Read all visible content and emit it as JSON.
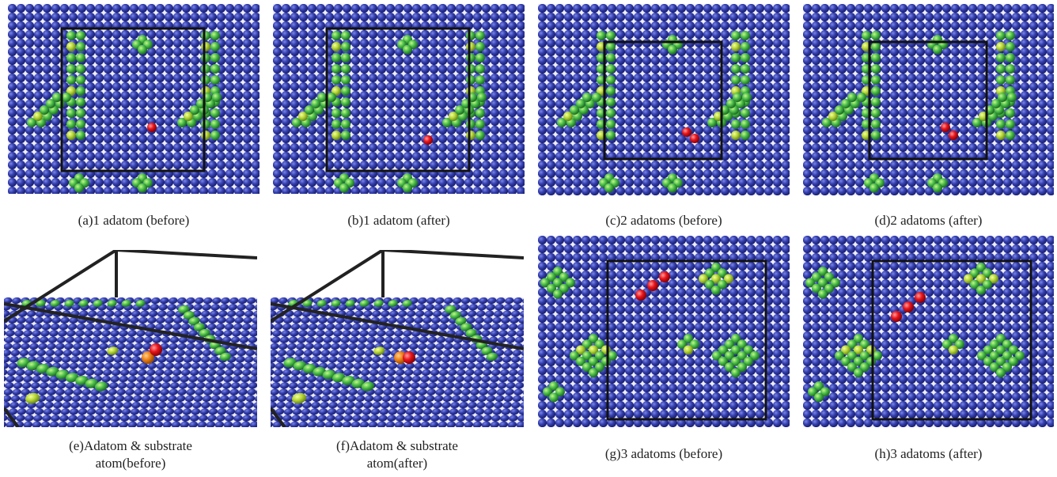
{
  "panels": [
    {
      "caption": [
        "(a)1 adatom (before)"
      ]
    },
    {
      "caption": [
        "(b)1 adatom (after)"
      ]
    },
    {
      "caption": [
        "(c)2 adatoms (before)"
      ]
    },
    {
      "caption": [
        "(d)2 adatoms (after)"
      ]
    },
    {
      "caption": [
        "(e)Adatom & substrate",
        "atom(before)"
      ]
    },
    {
      "caption": [
        "(f)Adatom & substrate",
        "atom(after)"
      ]
    },
    {
      "caption": [
        "(g)3 adatoms (before)"
      ]
    },
    {
      "caption": [
        "(h)3 adatoms (after)"
      ]
    }
  ]
}
